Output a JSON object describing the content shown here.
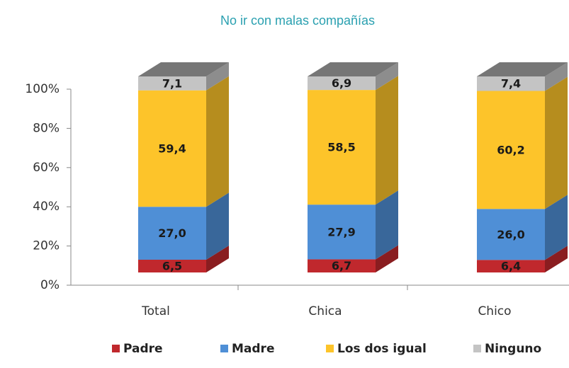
{
  "chart_data": {
    "type": "bar3d_stacked",
    "title": "No ir con malas compañías",
    "categories": [
      "Total",
      "Chica",
      "Chico"
    ],
    "series": [
      {
        "name": "Padre",
        "color": "#c0282d",
        "values": [
          6.5,
          6.7,
          6.4
        ],
        "value_labels": [
          "6,5",
          "6,7",
          "6,4"
        ]
      },
      {
        "name": "Madre",
        "color": "#4f8fd6",
        "values": [
          27.0,
          27.9,
          26.0
        ],
        "value_labels": [
          "27,0",
          "27,9",
          "26,0"
        ]
      },
      {
        "name": "Los dos igual",
        "color": "#fdc42a",
        "values": [
          59.4,
          58.5,
          60.2
        ],
        "value_labels": [
          "59,4",
          "58,5",
          "60,2"
        ]
      },
      {
        "name": "Ninguno",
        "color": "#c4c4c4",
        "values": [
          7.1,
          6.9,
          7.4
        ],
        "value_labels": [
          "7,1",
          "6,9",
          "7,4"
        ]
      }
    ],
    "ylim": [
      0,
      100
    ],
    "yticks": [
      {
        "value": 0,
        "label": "0%"
      },
      {
        "value": 20,
        "label": "20%"
      },
      {
        "value": 40,
        "label": "40%"
      },
      {
        "value": 60,
        "label": "60%"
      },
      {
        "value": 80,
        "label": "80%"
      },
      {
        "value": 100,
        "label": "100%"
      }
    ]
  }
}
